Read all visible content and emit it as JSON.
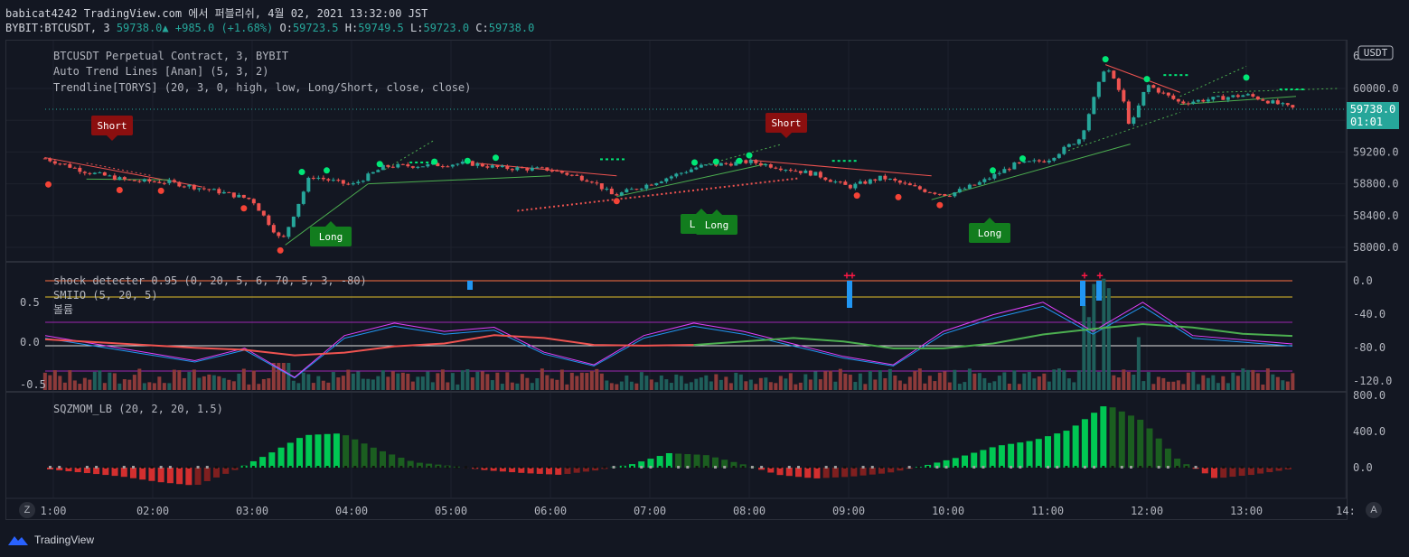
{
  "header": {
    "line1": "babicat4242 TradingView.com 에서 퍼블리쉬, 4월 02, 2021 13:32:00 JST",
    "symbol": "BYBIT:BTCUSDT, 3",
    "last": "59738.0",
    "change": "+985.0 (+1.68%)",
    "o_label": "O:",
    "o": "59723.5",
    "h_label": "H:",
    "h": "59749.5",
    "l_label": "L:",
    "l": "59723.0",
    "c_label": "C:",
    "c": "59738.0"
  },
  "legend": {
    "l1": "BTCUSDT Perpetual Contract, 3, BYBIT",
    "l2": "Auto Trend Lines [Anan] (5, 3, 2)",
    "l3": "Trendline[TORYS] (20, 3, 0, high, low, Long/Short, close, close)",
    "l4": "shock detecter 0.95 (0, 20, 5, 6, 70, 5, 3, -80)",
    "l5": "SMIIO (5, 20, 5)",
    "l6": "볼륨",
    "l7": "SQZMOM_LB (20, 2, 20, 1.5)"
  },
  "axis": {
    "currency": "USDT",
    "price_ticks": [
      "60000.0",
      "59200.0",
      "58800.0",
      "58400.0",
      "58000.0"
    ],
    "price_top_partial": "6",
    "price_label": "59738.0",
    "countdown": "01:01",
    "ind_left_ticks": [
      "0.5",
      "0.0",
      "-0.5"
    ],
    "ind_right_ticks": [
      "0.0",
      "-40.0",
      "-80.0",
      "-120.0"
    ],
    "sqz_ticks": [
      "800.0",
      "400.0",
      "0.0"
    ],
    "time_ticks": [
      "1:00",
      "02:00",
      "03:00",
      "04:00",
      "05:00",
      "06:00",
      "07:00",
      "08:00",
      "09:00",
      "10:00",
      "11:00",
      "12:00",
      "13:00",
      "14:"
    ]
  },
  "signals": [
    {
      "label": "Short",
      "kind": "short",
      "x": 124,
      "y": 139
    },
    {
      "label": "Short",
      "kind": "short",
      "x": 870,
      "y": 136
    },
    {
      "label": "Long",
      "kind": "long",
      "x": 366,
      "y": 262
    },
    {
      "label": "Long",
      "kind": "long",
      "x": 776,
      "y": 248
    },
    {
      "label": "Long",
      "kind": "long",
      "x": 793,
      "y": 249
    },
    {
      "label": "Long",
      "kind": "long",
      "x": 1095,
      "y": 258
    }
  ],
  "colors": {
    "up": "#26a69a",
    "down": "#ef5350",
    "short_bg": "#8b0f0f",
    "long_bg": "#127d1e",
    "trend_green": "#4caf50",
    "trend_red": "#ef5350",
    "axis_text": "#b2b5be",
    "price_tag": "#26a69a"
  },
  "footer": {
    "brand": "TradingView",
    "btn_left": "Z",
    "btn_right": "A"
  },
  "chart_data": [
    {
      "type": "candlestick",
      "title": "BTCUSDT Perpetual Contract, 3, BYBIT",
      "ylabel": "USDT",
      "ylim": [
        57800,
        60500
      ],
      "x_ticks": [
        "1:00",
        "02:00",
        "03:00",
        "04:00",
        "05:00",
        "06:00",
        "07:00",
        "08:00",
        "09:00",
        "10:00",
        "11:00",
        "12:00",
        "13:00"
      ],
      "close_path": [
        {
          "t": "00:55",
          "close": 59120
        },
        {
          "t": "01:20",
          "close": 58950
        },
        {
          "t": "01:45",
          "close": 58840
        },
        {
          "t": "02:10",
          "close": 58820
        },
        {
          "t": "02:40",
          "close": 58700
        },
        {
          "t": "03:00",
          "close": 58600
        },
        {
          "t": "03:18",
          "close": 58070
        },
        {
          "t": "03:35",
          "close": 58900
        },
        {
          "t": "04:00",
          "close": 58780
        },
        {
          "t": "04:20",
          "close": 59020
        },
        {
          "t": "04:45",
          "close": 59030
        },
        {
          "t": "05:10",
          "close": 59060
        },
        {
          "t": "05:30",
          "close": 59000
        },
        {
          "t": "06:00",
          "close": 58980
        },
        {
          "t": "06:25",
          "close": 58840
        },
        {
          "t": "06:38",
          "close": 58650
        },
        {
          "t": "07:00",
          "close": 58800
        },
        {
          "t": "07:30",
          "close": 59020
        },
        {
          "t": "08:00",
          "close": 59080
        },
        {
          "t": "08:20",
          "close": 59000
        },
        {
          "t": "08:40",
          "close": 58920
        },
        {
          "t": "09:00",
          "close": 58760
        },
        {
          "t": "09:20",
          "close": 58880
        },
        {
          "t": "09:45",
          "close": 58720
        },
        {
          "t": "10:00",
          "close": 58660
        },
        {
          "t": "10:20",
          "close": 58820
        },
        {
          "t": "10:40",
          "close": 59040
        },
        {
          "t": "11:00",
          "close": 59100
        },
        {
          "t": "11:20",
          "close": 59380
        },
        {
          "t": "11:35",
          "close": 60300
        },
        {
          "t": "11:45",
          "close": 59900
        },
        {
          "t": "11:50",
          "close": 59500
        },
        {
          "t": "12:00",
          "close": 60050
        },
        {
          "t": "12:20",
          "close": 59820
        },
        {
          "t": "12:40",
          "close": 59870
        },
        {
          "t": "13:00",
          "close": 59920
        },
        {
          "t": "13:30",
          "close": 59738
        }
      ],
      "series": [
        {
          "name": "Short"
        },
        {
          "name": "Long"
        }
      ]
    },
    {
      "type": "line",
      "title": "SMIIO (5, 20, 5)",
      "ylim": [
        -0.6,
        0.8
      ],
      "series": [
        {
          "name": "SMIIO",
          "values": [
            0.05,
            -0.05,
            -0.15,
            -0.25,
            -0.1,
            -0.45,
            0.05,
            0.2,
            0.1,
            0.15,
            -0.15,
            -0.3,
            0.05,
            0.2,
            0.1,
            -0.05,
            -0.2,
            -0.3,
            0.1,
            0.3,
            0.45,
            0.1,
            0.45,
            0.05,
            0.0,
            -0.05
          ]
        }
      ]
    },
    {
      "type": "bar",
      "title": "SQZMOM_LB (20, 2, 20, 1.5)",
      "ylim": [
        -300,
        800
      ],
      "values": [
        -20,
        -60,
        -100,
        -160,
        -200,
        -40,
        150,
        360,
        380,
        200,
        60,
        20,
        -30,
        -60,
        -80,
        -30,
        40,
        160,
        140,
        40,
        -80,
        -120,
        -100,
        -60,
        20,
        120,
        240,
        300,
        420,
        700,
        520,
        80,
        -120,
        -80,
        -20
      ]
    }
  ]
}
